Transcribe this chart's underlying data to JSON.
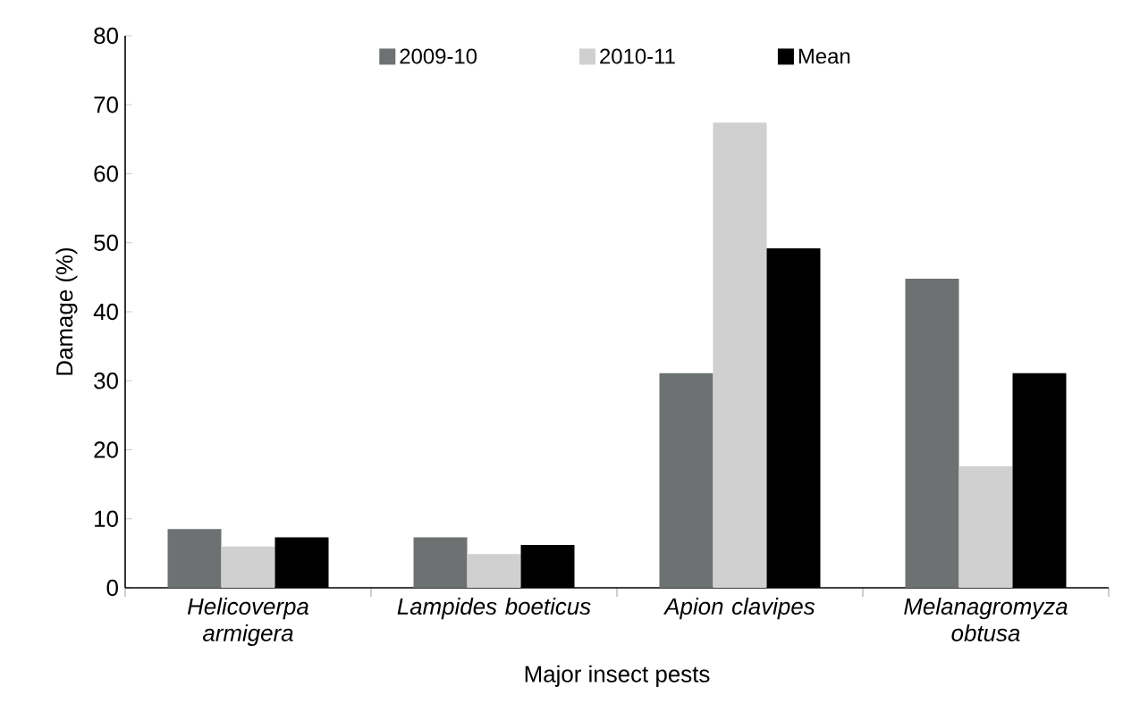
{
  "chart_data": {
    "type": "bar",
    "xlabel": "Major insect pests",
    "ylabel": "Damage (%)",
    "categories": [
      "Helicoverpa armigera",
      "Lampides boeticus",
      "Apion clavipes",
      "Melanagromyza obtusa"
    ],
    "series": [
      {
        "name": "2009-10",
        "color": "#6e7171",
        "values": [
          8.5,
          7.3,
          31.1,
          44.8
        ]
      },
      {
        "name": "2010-11",
        "color": "#d0d0d0",
        "values": [
          6.0,
          4.9,
          67.4,
          17.6
        ]
      },
      {
        "name": "Mean",
        "color": "#000000",
        "values": [
          7.3,
          6.2,
          49.2,
          31.1
        ]
      }
    ],
    "ylim": [
      0,
      80
    ],
    "yticks": [
      0,
      10,
      20,
      30,
      40,
      50,
      60,
      70,
      80
    ],
    "grid": false,
    "legend": "top"
  }
}
